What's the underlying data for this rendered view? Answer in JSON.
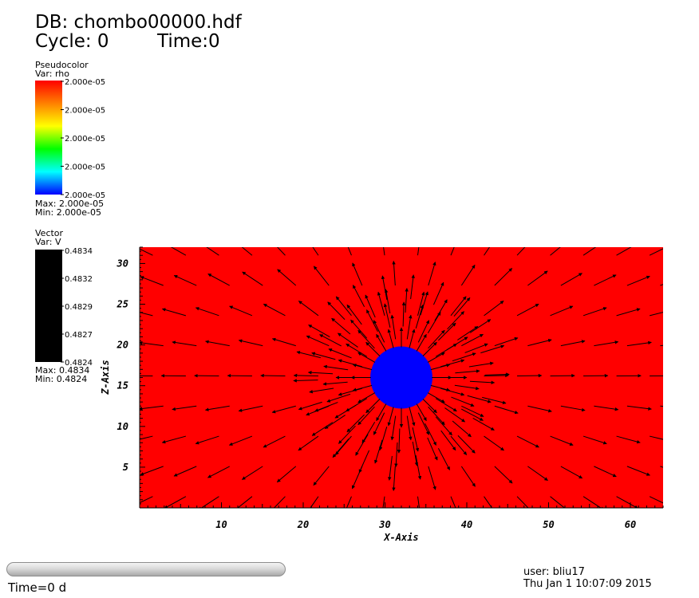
{
  "header": {
    "db_title": "DB: chombo00000.hdf",
    "cycle": "Cycle: 0",
    "time": "Time:0"
  },
  "pseudocolor_legend": {
    "title": "Pseudocolor",
    "var": "Var: rho",
    "ticks": [
      "2.000e-05",
      "2.000e-05",
      "2.000e-05",
      "2.000e-05",
      "2.000e-05"
    ],
    "max": "Max:  2.000e-05",
    "min": "Min:  2.000e-05",
    "colors": [
      "#ff0000",
      "#ff8000",
      "#ffff00",
      "#00ff00",
      "#00ffff",
      "#0000ff"
    ]
  },
  "vector_legend": {
    "title": "Vector",
    "var": "Var: V",
    "ticks": [
      "0.4834",
      "0.4832",
      "0.4829",
      "0.4827",
      "0.4824"
    ],
    "max": "Max:  0.4834",
    "min": "Min:  0.4824",
    "color": "#000000"
  },
  "chart_data": {
    "type": "vector-field",
    "xlabel": "X-Axis",
    "ylabel": "Z-Axis",
    "xlim": [
      0,
      64
    ],
    "ylim": [
      0,
      32
    ],
    "xticks": [
      10,
      20,
      30,
      40,
      50,
      60
    ],
    "yticks": [
      5,
      10,
      15,
      20,
      25,
      30
    ],
    "background_color": "#ff0000",
    "sphere": {
      "center": [
        32,
        16
      ],
      "radius": 3.8,
      "color": "#0000ff"
    },
    "field": "radial outward vectors from sphere center",
    "vector_color": "#000000"
  },
  "footer": {
    "time": "Time=0 d",
    "user": "user: bliu17",
    "date": "Thu Jan  1 10:07:09 2015"
  }
}
